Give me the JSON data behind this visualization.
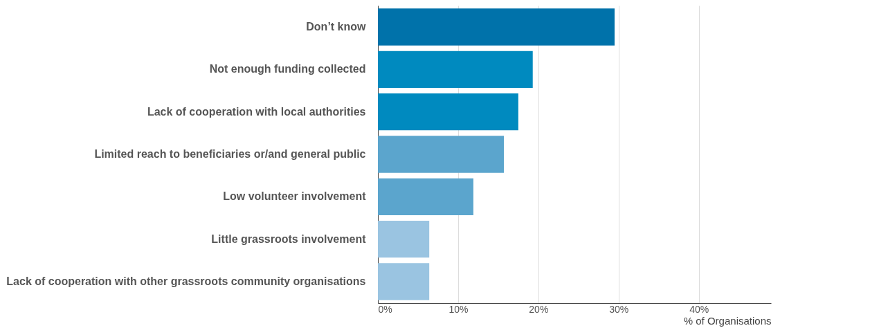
{
  "chart_data": {
    "type": "bar",
    "orientation": "horizontal",
    "categories": [
      "Don’t know",
      "Not enough funding collected",
      "Lack of cooperation with local authorities",
      "Limited reach to beneficiaries or/and general public",
      "Low volunteer involvement",
      "Little grassroots involvement",
      "Lack of cooperation with other grassroots community organisations"
    ],
    "values": [
      29.5,
      19.3,
      17.5,
      15.7,
      11.9,
      6.4,
      6.4
    ],
    "colors": [
      "#0072aa",
      "#008abf",
      "#008abf",
      "#5ba5cd",
      "#5ba5cd",
      "#9ac4e1",
      "#9ac4e1"
    ],
    "xlim": [
      0,
      49
    ],
    "xticks": [
      {
        "value": 0,
        "label": "0%"
      },
      {
        "value": 10,
        "label": "10%"
      },
      {
        "value": 20,
        "label": "20%"
      },
      {
        "value": 30,
        "label": "30%"
      },
      {
        "value": 40,
        "label": "40%"
      }
    ],
    "xlabel": "% of Organisations",
    "grid": "x"
  }
}
